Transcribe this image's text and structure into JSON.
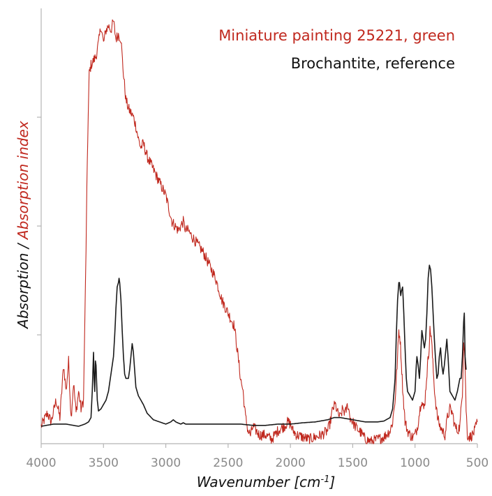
{
  "chart_data": {
    "type": "line",
    "xlabel": "Wavenumber [cm",
    "xlabel_sup": "-1",
    "xlabel_suffix": "]",
    "ylabel_part1": "Absorption / ",
    "ylabel_part2": "Absorption index",
    "ylabel_color_part1": "#1a1a1a",
    "ylabel_color_part2": "#c0281e",
    "xlim": [
      4000,
      500
    ],
    "ylim": [
      0,
      1
    ],
    "x_reversed": true,
    "xticks": [
      4000,
      3500,
      3000,
      2500,
      2000,
      1500,
      1000,
      500
    ],
    "xtick_labels": [
      "4000",
      "3500",
      "3000",
      "2500",
      "2000",
      "1500",
      "1000",
      "500"
    ],
    "yticks": [
      0.25,
      0.5,
      0.75
    ],
    "grid": false,
    "legend_placement": "top-right",
    "series": [
      {
        "name": "Miniature painting 25221, green",
        "color": "#c0281e",
        "noisy": true,
        "points": [
          [
            4000,
            0.04
          ],
          [
            3950,
            0.07
          ],
          [
            3920,
            0.05
          ],
          [
            3880,
            0.1
          ],
          [
            3850,
            0.06
          ],
          [
            3820,
            0.18
          ],
          [
            3800,
            0.12
          ],
          [
            3780,
            0.19
          ],
          [
            3760,
            0.06
          ],
          [
            3740,
            0.14
          ],
          [
            3720,
            0.07
          ],
          [
            3700,
            0.12
          ],
          [
            3680,
            0.08
          ],
          [
            3660,
            0.1
          ],
          [
            3640,
            0.45
          ],
          [
            3630,
            0.65
          ],
          [
            3615,
            0.85
          ],
          [
            3600,
            0.87
          ],
          [
            3580,
            0.88
          ],
          [
            3560,
            0.89
          ],
          [
            3540,
            0.92
          ],
          [
            3520,
            0.96
          ],
          [
            3500,
            0.92
          ],
          [
            3480,
            0.95
          ],
          [
            3460,
            0.96
          ],
          [
            3440,
            0.95
          ],
          [
            3420,
            0.97
          ],
          [
            3400,
            0.93
          ],
          [
            3380,
            0.94
          ],
          [
            3360,
            0.93
          ],
          [
            3340,
            0.85
          ],
          [
            3320,
            0.79
          ],
          [
            3300,
            0.77
          ],
          [
            3280,
            0.76
          ],
          [
            3260,
            0.75
          ],
          [
            3240,
            0.73
          ],
          [
            3220,
            0.7
          ],
          [
            3200,
            0.68
          ],
          [
            3180,
            0.69
          ],
          [
            3150,
            0.66
          ],
          [
            3100,
            0.63
          ],
          [
            3050,
            0.6
          ],
          [
            3000,
            0.57
          ],
          [
            2950,
            0.51
          ],
          [
            2900,
            0.49
          ],
          [
            2880,
            0.5
          ],
          [
            2860,
            0.51
          ],
          [
            2840,
            0.49
          ],
          [
            2820,
            0.49
          ],
          [
            2800,
            0.48
          ],
          [
            2750,
            0.46
          ],
          [
            2700,
            0.44
          ],
          [
            2650,
            0.41
          ],
          [
            2600,
            0.38
          ],
          [
            2550,
            0.33
          ],
          [
            2500,
            0.3
          ],
          [
            2450,
            0.27
          ],
          [
            2420,
            0.2
          ],
          [
            2400,
            0.15
          ],
          [
            2380,
            0.12
          ],
          [
            2360,
            0.06
          ],
          [
            2340,
            0.03
          ],
          [
            2320,
            0.02
          ],
          [
            2300,
            0.04
          ],
          [
            2250,
            0.02
          ],
          [
            2200,
            0.02
          ],
          [
            2150,
            0.01
          ],
          [
            2100,
            0.03
          ],
          [
            2050,
            0.04
          ],
          [
            2020,
            0.05
          ],
          [
            2000,
            0.045
          ],
          [
            1980,
            0.03
          ],
          [
            1950,
            0.02
          ],
          [
            1900,
            0.015
          ],
          [
            1850,
            0.01
          ],
          [
            1800,
            0.015
          ],
          [
            1750,
            0.02
          ],
          [
            1700,
            0.03
          ],
          [
            1680,
            0.05
          ],
          [
            1660,
            0.08
          ],
          [
            1640,
            0.09
          ],
          [
            1620,
            0.07
          ],
          [
            1600,
            0.06
          ],
          [
            1580,
            0.08
          ],
          [
            1560,
            0.07
          ],
          [
            1540,
            0.09
          ],
          [
            1520,
            0.06
          ],
          [
            1500,
            0.05
          ],
          [
            1480,
            0.04
          ],
          [
            1450,
            0.03
          ],
          [
            1420,
            0.02
          ],
          [
            1400,
            0.01
          ],
          [
            1350,
            0.005
          ],
          [
            1300,
            0.01
          ],
          [
            1250,
            0.015
          ],
          [
            1200,
            0.03
          ],
          [
            1180,
            0.05
          ],
          [
            1160,
            0.1
          ],
          [
            1140,
            0.2
          ],
          [
            1130,
            0.26
          ],
          [
            1120,
            0.24
          ],
          [
            1110,
            0.19
          ],
          [
            1100,
            0.13
          ],
          [
            1090,
            0.09
          ],
          [
            1080,
            0.05
          ],
          [
            1060,
            0.03
          ],
          [
            1040,
            0.02
          ],
          [
            1020,
            0.015
          ],
          [
            1000,
            0.02
          ],
          [
            980,
            0.04
          ],
          [
            960,
            0.08
          ],
          [
            950,
            0.1
          ],
          [
            940,
            0.09
          ],
          [
            930,
            0.08
          ],
          [
            920,
            0.1
          ],
          [
            900,
            0.18
          ],
          [
            890,
            0.21
          ],
          [
            880,
            0.26
          ],
          [
            870,
            0.25
          ],
          [
            860,
            0.2
          ],
          [
            850,
            0.15
          ],
          [
            840,
            0.11
          ],
          [
            820,
            0.06
          ],
          [
            800,
            0.04
          ],
          [
            780,
            0.03
          ],
          [
            760,
            0.02
          ],
          [
            740,
            0.06
          ],
          [
            720,
            0.08
          ],
          [
            700,
            0.07
          ],
          [
            680,
            0.04
          ],
          [
            660,
            0.03
          ],
          [
            640,
            0.04
          ],
          [
            620,
            0.12
          ],
          [
            610,
            0.24
          ],
          [
            600,
            0.2
          ],
          [
            590,
            0.08
          ],
          [
            580,
            0.02
          ],
          [
            560,
            0.015
          ],
          [
            540,
            0.02
          ],
          [
            520,
            0.03
          ],
          [
            500,
            0.05
          ]
        ]
      },
      {
        "name": "Brochantite, reference",
        "color": "#1a1a1a",
        "noisy": false,
        "points": [
          [
            4000,
            0.04
          ],
          [
            3900,
            0.045
          ],
          [
            3800,
            0.045
          ],
          [
            3700,
            0.04
          ],
          [
            3650,
            0.045
          ],
          [
            3620,
            0.05
          ],
          [
            3600,
            0.06
          ],
          [
            3590,
            0.12
          ],
          [
            3580,
            0.21
          ],
          [
            3575,
            0.15
          ],
          [
            3570,
            0.12
          ],
          [
            3565,
            0.19
          ],
          [
            3560,
            0.18
          ],
          [
            3550,
            0.1
          ],
          [
            3540,
            0.075
          ],
          [
            3520,
            0.08
          ],
          [
            3500,
            0.09
          ],
          [
            3480,
            0.1
          ],
          [
            3460,
            0.12
          ],
          [
            3440,
            0.16
          ],
          [
            3420,
            0.2
          ],
          [
            3410,
            0.25
          ],
          [
            3400,
            0.31
          ],
          [
            3390,
            0.36
          ],
          [
            3380,
            0.37
          ],
          [
            3375,
            0.38
          ],
          [
            3370,
            0.37
          ],
          [
            3360,
            0.33
          ],
          [
            3350,
            0.26
          ],
          [
            3340,
            0.2
          ],
          [
            3330,
            0.16
          ],
          [
            3320,
            0.15
          ],
          [
            3300,
            0.15
          ],
          [
            3290,
            0.17
          ],
          [
            3280,
            0.2
          ],
          [
            3270,
            0.23
          ],
          [
            3260,
            0.21
          ],
          [
            3250,
            0.17
          ],
          [
            3240,
            0.13
          ],
          [
            3220,
            0.11
          ],
          [
            3200,
            0.1
          ],
          [
            3180,
            0.09
          ],
          [
            3150,
            0.07
          ],
          [
            3100,
            0.055
          ],
          [
            3050,
            0.05
          ],
          [
            3000,
            0.045
          ],
          [
            2960,
            0.05
          ],
          [
            2940,
            0.055
          ],
          [
            2920,
            0.05
          ],
          [
            2880,
            0.045
          ],
          [
            2860,
            0.048
          ],
          [
            2840,
            0.045
          ],
          [
            2800,
            0.045
          ],
          [
            2700,
            0.045
          ],
          [
            2600,
            0.045
          ],
          [
            2500,
            0.045
          ],
          [
            2400,
            0.045
          ],
          [
            2300,
            0.042
          ],
          [
            2200,
            0.042
          ],
          [
            2100,
            0.045
          ],
          [
            2000,
            0.045
          ],
          [
            1900,
            0.048
          ],
          [
            1800,
            0.05
          ],
          [
            1700,
            0.055
          ],
          [
            1650,
            0.06
          ],
          [
            1600,
            0.06
          ],
          [
            1500,
            0.055
          ],
          [
            1400,
            0.05
          ],
          [
            1300,
            0.05
          ],
          [
            1250,
            0.052
          ],
          [
            1200,
            0.06
          ],
          [
            1180,
            0.08
          ],
          [
            1160,
            0.15
          ],
          [
            1150,
            0.25
          ],
          [
            1140,
            0.33
          ],
          [
            1130,
            0.37
          ],
          [
            1125,
            0.37
          ],
          [
            1115,
            0.34
          ],
          [
            1110,
            0.35
          ],
          [
            1100,
            0.36
          ],
          [
            1090,
            0.3
          ],
          [
            1080,
            0.22
          ],
          [
            1070,
            0.15
          ],
          [
            1060,
            0.12
          ],
          [
            1040,
            0.11
          ],
          [
            1020,
            0.1
          ],
          [
            1000,
            0.12
          ],
          [
            990,
            0.18
          ],
          [
            985,
            0.2
          ],
          [
            975,
            0.18
          ],
          [
            965,
            0.15
          ],
          [
            955,
            0.2
          ],
          [
            945,
            0.26
          ],
          [
            935,
            0.24
          ],
          [
            925,
            0.22
          ],
          [
            915,
            0.24
          ],
          [
            905,
            0.3
          ],
          [
            895,
            0.38
          ],
          [
            885,
            0.41
          ],
          [
            875,
            0.4
          ],
          [
            865,
            0.36
          ],
          [
            855,
            0.3
          ],
          [
            845,
            0.24
          ],
          [
            835,
            0.19
          ],
          [
            825,
            0.15
          ],
          [
            815,
            0.16
          ],
          [
            805,
            0.2
          ],
          [
            795,
            0.22
          ],
          [
            785,
            0.18
          ],
          [
            775,
            0.16
          ],
          [
            765,
            0.18
          ],
          [
            755,
            0.21
          ],
          [
            745,
            0.24
          ],
          [
            735,
            0.2
          ],
          [
            720,
            0.12
          ],
          [
            700,
            0.11
          ],
          [
            680,
            0.1
          ],
          [
            660,
            0.12
          ],
          [
            640,
            0.15
          ],
          [
            630,
            0.15
          ],
          [
            620,
            0.2
          ],
          [
            610,
            0.28
          ],
          [
            605,
            0.3
          ],
          [
            598,
            0.2
          ],
          [
            590,
            0.17
          ]
        ]
      }
    ]
  }
}
